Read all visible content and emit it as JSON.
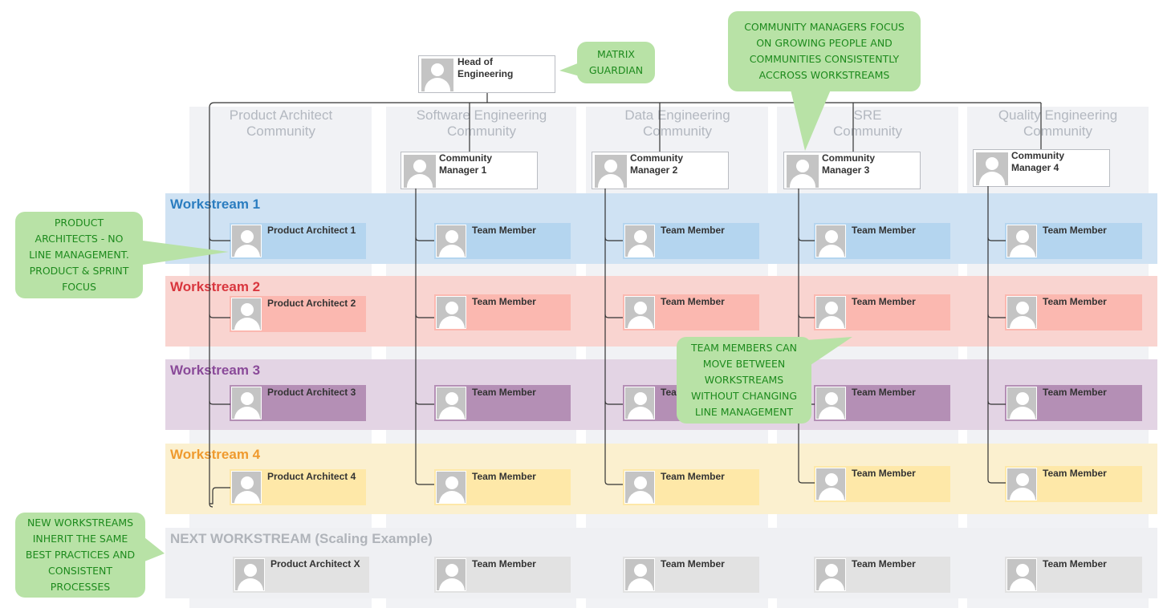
{
  "head": {
    "label": "Head of\nEngineering"
  },
  "communities": [
    {
      "title": "Product  Architect\nCommunity"
    },
    {
      "title": "Software Engineering\nCommunity",
      "manager": "Community\nManager 1"
    },
    {
      "title": "Data Engineering\nCommunity",
      "manager": "Community\nManager 2"
    },
    {
      "title": "SRE\nCommunity",
      "manager": "Community\nManager 3"
    },
    {
      "title": "Quality Engineering\nCommunity",
      "manager": "Community\nManager 4"
    }
  ],
  "workstreams": [
    {
      "name": "Workstream 1",
      "label_color": "#2b7dc0",
      "band_color": "#cfe2f3",
      "card_color": "#b4d5ef",
      "cards": [
        "Product Architect 1",
        "Team Member",
        "Team Member",
        "Team Member",
        "Team Member"
      ]
    },
    {
      "name": "Workstream 2",
      "label_color": "#d9363e",
      "band_color": "#f9d4d0",
      "card_color": "#fbb8b0",
      "cards": [
        "Product Architect 2",
        "Team Member",
        "Team Member",
        "Team Member",
        "Team Member"
      ]
    },
    {
      "name": "Workstream 3",
      "label_color": "#8a4a99",
      "band_color": "#e3d4e4",
      "card_color": "#b48fb5",
      "cards": [
        "Product Architect 3",
        "Team Member",
        "Team Member",
        "Team Member",
        "Team Member"
      ]
    },
    {
      "name": "Workstream 4",
      "label_color": "#ef9a2e",
      "band_color": "#fbf0cf",
      "card_color": "#fee8a8",
      "cards": [
        "Product Architect 4",
        "Team Member",
        "Team Member",
        "Team Member",
        "Team Member"
      ]
    },
    {
      "name": "NEXT WORKSTREAM (Scaling Example)",
      "label_color": "#b0b4ba",
      "band_color": "#eff0f3",
      "card_color": "#e2e2e2",
      "cards": [
        "Product Architect X",
        "Team Member",
        "Team Member",
        "Team Member",
        "Team Member"
      ]
    }
  ],
  "callouts": {
    "matrix": "Matrix\nGuardian",
    "community_managers": "Community Managers focus\non growing people and\ncommunities consistently\naccross workstreams",
    "product_architects": "Product\nArchitects - no\nline management.\nProduct & Sprint\nfocus",
    "team_members": "Team members can\nmove between\nworkstreams\nwithout changing\nline management",
    "new_workstreams": "New workstreams\ninherit the same\nbest practices and\nconsistent\nprocesses"
  },
  "colors": {
    "callout_bg": "#b8e2a6",
    "callout_text": "#1d8a1d",
    "line": "#333333"
  }
}
